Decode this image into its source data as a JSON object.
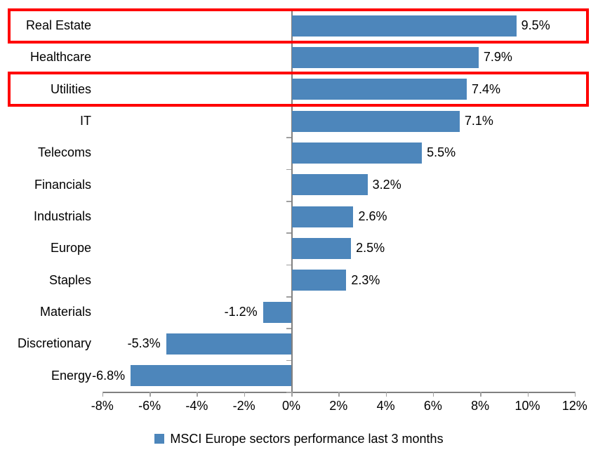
{
  "chart_data": {
    "type": "bar",
    "orientation": "horizontal",
    "title": "",
    "xlabel": "",
    "ylabel": "",
    "categories": [
      "Real Estate",
      "Healthcare",
      "Utilities",
      "IT",
      "Telecoms",
      "Financials",
      "Industrials",
      "Europe",
      "Staples",
      "Materials",
      "Discretionary",
      "Energy"
    ],
    "values": [
      9.5,
      7.9,
      7.4,
      7.1,
      5.5,
      3.2,
      2.6,
      2.5,
      2.3,
      -1.2,
      -5.3,
      -6.8
    ],
    "data_labels": [
      "9.5%",
      "7.9%",
      "7.4%",
      "7.1%",
      "5.5%",
      "3.2%",
      "2.6%",
      "2.5%",
      "2.3%",
      "-1.2%",
      "-5.3%",
      "-6.8%"
    ],
    "xlim": [
      -8,
      12
    ],
    "x_ticks": [
      {
        "value": -8,
        "label": "-8%"
      },
      {
        "value": -6,
        "label": "-6%"
      },
      {
        "value": -4,
        "label": "-4%"
      },
      {
        "value": -2,
        "label": "-2%"
      },
      {
        "value": 0,
        "label": "0%"
      },
      {
        "value": 2,
        "label": "2%"
      },
      {
        "value": 4,
        "label": "4%"
      },
      {
        "value": 6,
        "label": "6%"
      },
      {
        "value": 8,
        "label": "8%"
      },
      {
        "value": 10,
        "label": "10%"
      },
      {
        "value": 12,
        "label": "12%"
      }
    ],
    "grid": false,
    "legend_position": "bottom",
    "legend_entries": [
      "MSCI Europe sectors performance last 3 months"
    ],
    "highlighted_categories": [
      "Real Estate",
      "Utilities"
    ],
    "highlight_indexes": [
      0,
      2
    ]
  },
  "legend": {
    "label": "MSCI Europe sectors performance last 3 months"
  },
  "colors": {
    "bar": "#4D86BB",
    "highlight_border": "#FF0000",
    "axis": "#808080",
    "tick": "#A0A0A0",
    "text": "#000000",
    "background": "#FFFFFF"
  }
}
